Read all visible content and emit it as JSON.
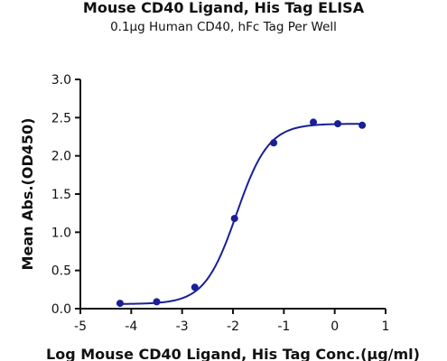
{
  "chart_data": {
    "type": "scatter",
    "title": "Mouse CD40 Ligand, His Tag ELISA",
    "subtitle": "0.1µg Human CD40, hFc Tag Per Well",
    "xlabel": "Log Mouse CD40 Ligand, His Tag Conc.(µg/ml)",
    "ylabel": "Mean Abs.(OD450)",
    "xlim": [
      -5,
      1
    ],
    "ylim": [
      0,
      3.0
    ],
    "xticks": [
      -5,
      -4,
      -3,
      -2,
      -1,
      0,
      1
    ],
    "yticks": [
      0.0,
      0.5,
      1.0,
      1.5,
      2.0,
      2.5,
      3.0
    ],
    "ytick_labels": [
      "0.0",
      "0.5",
      "1.0",
      "1.5",
      "2.0",
      "2.5",
      "3.0"
    ],
    "grid": false,
    "legend": "none",
    "color": "#1a1f96",
    "series": [
      {
        "x": [
          -4.22,
          -3.5,
          -2.75,
          -1.97,
          -1.2,
          -0.42,
          0.06,
          0.54
        ],
        "y": [
          0.07,
          0.09,
          0.28,
          1.18,
          2.17,
          2.44,
          2.42,
          2.4
        ]
      }
    ],
    "fit": {
      "model": "4PL",
      "bottom": 0.06,
      "top": 2.42,
      "logEC50": -1.93,
      "hill": 1.38
    }
  }
}
